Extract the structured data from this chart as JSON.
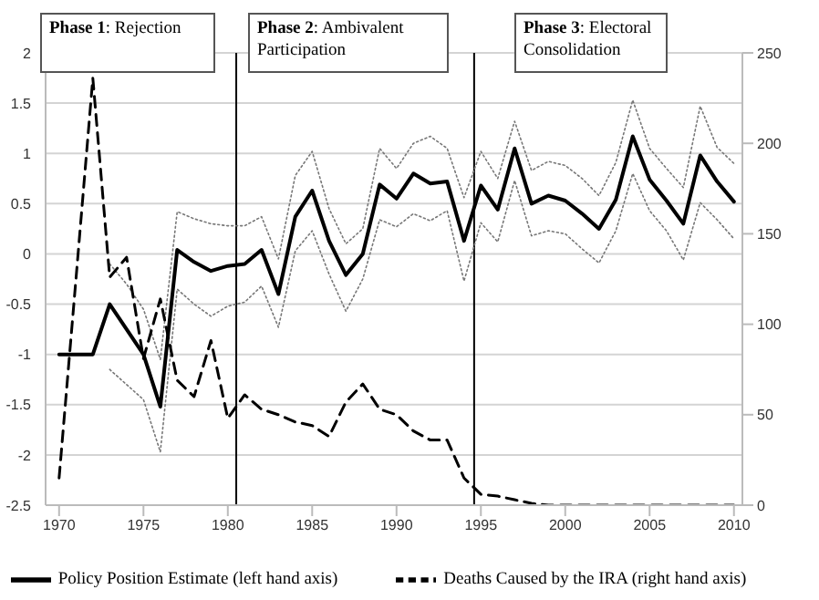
{
  "chart_data": {
    "type": "line",
    "x": [
      1970,
      1971,
      1972,
      1973,
      1974,
      1975,
      1976,
      1977,
      1978,
      1979,
      1980,
      1981,
      1982,
      1983,
      1984,
      1985,
      1986,
      1987,
      1988,
      1989,
      1990,
      1991,
      1992,
      1993,
      1994,
      1995,
      1996,
      1997,
      1998,
      1999,
      2000,
      2001,
      2002,
      2003,
      2004,
      2005,
      2006,
      2007,
      2008,
      2009,
      2010
    ],
    "series": [
      {
        "name": "Policy Position Estimate (left hand axis)",
        "color": "#000000",
        "line_style": "solid",
        "values": [
          -1,
          -1,
          -1,
          -0.5,
          -0.75,
          -1,
          -1.52,
          0.04,
          -0.08,
          -0.17,
          -0.12,
          -0.1,
          0.04,
          -0.4,
          0.37,
          0.63,
          0.13,
          -0.21,
          0,
          0.69,
          0.55,
          0.8,
          0.7,
          0.72,
          0.13,
          0.68,
          0.44,
          1.05,
          0.5,
          0.58,
          0.53,
          0.4,
          0.25,
          0.54,
          1.17,
          0.74,
          0.53,
          0.3,
          0.98,
          0.72,
          0.52
        ]
      },
      {
        "name": "Deaths Caused by the IRA (right hand axis)",
        "color": "#000000",
        "line_style": "dashed",
        "axis": "y2",
        "values": [
          15,
          125,
          236,
          126,
          137,
          81,
          114,
          69,
          60,
          91,
          48,
          61,
          53,
          50,
          46,
          44,
          38,
          57,
          67,
          53,
          50,
          41,
          36,
          36,
          15,
          6,
          5,
          3,
          1,
          0,
          0,
          0,
          0,
          0,
          0,
          0,
          0,
          0,
          0,
          0,
          0
        ]
      },
      {
        "color": "#777777",
        "line_style": "dotted",
        "values": [
          null,
          null,
          null,
          -1.15,
          -1.3,
          -1.45,
          -1.97,
          -0.35,
          -0.5,
          -0.62,
          -0.52,
          -0.48,
          -0.32,
          -0.73,
          0.03,
          0.23,
          -0.2,
          -0.57,
          -0.25,
          0.34,
          0.27,
          0.4,
          0.33,
          0.43,
          -0.27,
          0.31,
          0.12,
          0.73,
          0.18,
          0.23,
          0.2,
          0.05,
          -0.09,
          0.23,
          0.8,
          0.43,
          0.23,
          -0.06,
          0.51,
          0.34,
          0.15
        ]
      },
      {
        "color": "#777777",
        "line_style": "dotted",
        "values": [
          null,
          null,
          null,
          -0.1,
          -0.3,
          -0.55,
          -1.05,
          0.42,
          0.35,
          0.3,
          0.28,
          0.28,
          0.37,
          -0.05,
          0.78,
          1.02,
          0.45,
          0.1,
          0.25,
          1.05,
          0.85,
          1.1,
          1.17,
          1.05,
          0.56,
          1.02,
          0.75,
          1.32,
          0.83,
          0.92,
          0.88,
          0.75,
          0.58,
          0.91,
          1.53,
          1.05,
          0.85,
          0.66,
          1.47,
          1.06,
          0.9
        ]
      }
    ],
    "xlim": [
      1969.2,
      2010.5
    ],
    "xticks": [
      1970,
      1975,
      1980,
      1985,
      1990,
      1995,
      2000,
      2005,
      2010
    ],
    "ylim": [
      -2.5,
      2
    ],
    "yticks": [
      -2.5,
      -2,
      -1.5,
      -1,
      -0.5,
      0,
      0.5,
      1,
      1.5,
      2
    ],
    "y2lim": [
      0,
      250
    ],
    "y2ticks": [
      0,
      50,
      100,
      150,
      200,
      250
    ],
    "grid": "y",
    "legend": "bottom",
    "marker": "none",
    "ref_lines": [
      {
        "axis": "x",
        "value": 1980.5,
        "color": "#000000"
      },
      {
        "axis": "x",
        "value": 1994.6,
        "color": "#000000"
      }
    ],
    "annotations": [
      "Phase 1: Rejection",
      "Phase 2: Ambivalent Participation",
      "Phase 3: Electoral Consolidation"
    ]
  }
}
